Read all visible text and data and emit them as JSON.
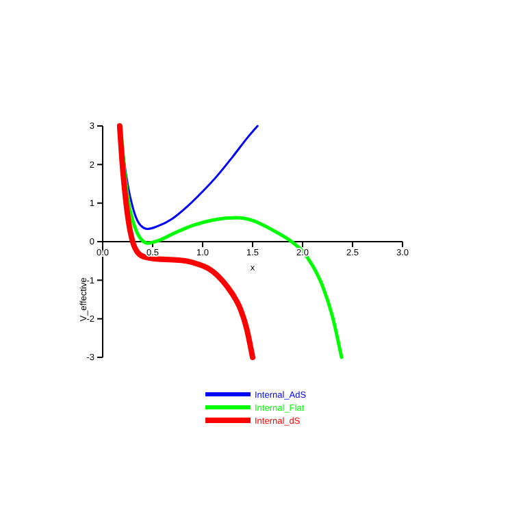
{
  "chart_data": {
    "type": "line",
    "xlabel": "x",
    "ylabel": "V_effective",
    "xlim": [
      0,
      3
    ],
    "ylim": [
      -3,
      3
    ],
    "xticks": [
      {
        "value": 0,
        "label": "0.0"
      },
      0.5,
      {
        "value": 1,
        "label": "1.0"
      },
      1.5,
      {
        "value": 2,
        "label": "2.0"
      },
      2.5,
      {
        "value": 3,
        "label": "3.0"
      }
    ],
    "yticks": [
      -3,
      -2,
      -1,
      0,
      1,
      2,
      3
    ],
    "grid": false,
    "legend": "bottom",
    "marker": "none",
    "line_style": "solid",
    "series": [
      {
        "name": "Internal_AdS",
        "color": "#0000ff",
        "x": [
          0.18,
          0.22,
          0.26,
          0.29,
          0.33,
          0.38,
          0.45,
          0.55,
          0.7,
          0.85,
          1.0,
          1.15,
          1.3,
          1.45,
          1.55
        ],
        "values": [
          3,
          2.0,
          1.35,
          1.0,
          0.65,
          0.42,
          0.33,
          0.4,
          0.6,
          0.92,
          1.3,
          1.72,
          2.2,
          2.7,
          3
        ]
      },
      {
        "name": "Internal_Flat",
        "color": "#00ff00",
        "x": [
          0.18,
          0.22,
          0.26,
          0.3,
          0.35,
          0.4,
          0.45,
          0.55,
          0.7,
          0.9,
          1.1,
          1.34,
          1.5,
          1.7,
          1.89,
          2.0,
          2.1,
          2.2,
          2.3,
          2.39
        ],
        "values": [
          3,
          1.8,
          1.0,
          0.55,
          0.2,
          0.02,
          -0.04,
          0.02,
          0.2,
          0.42,
          0.56,
          0.62,
          0.55,
          0.3,
          0,
          -0.25,
          -0.62,
          -1.15,
          -1.95,
          -3
        ]
      },
      {
        "name": "Internal_dS",
        "color": "#ff0000",
        "x": [
          0.17,
          0.2,
          0.23,
          0.26,
          0.3,
          0.35,
          0.42,
          0.54,
          0.7,
          0.83,
          0.95,
          1.06,
          1.15,
          1.25,
          1.32,
          1.38,
          1.44,
          1.5
        ],
        "values": [
          3,
          1.9,
          1.1,
          0.5,
          0.0,
          -0.28,
          -0.4,
          -0.45,
          -0.47,
          -0.5,
          -0.58,
          -0.7,
          -0.88,
          -1.18,
          -1.45,
          -1.76,
          -2.25,
          -3
        ]
      }
    ]
  }
}
